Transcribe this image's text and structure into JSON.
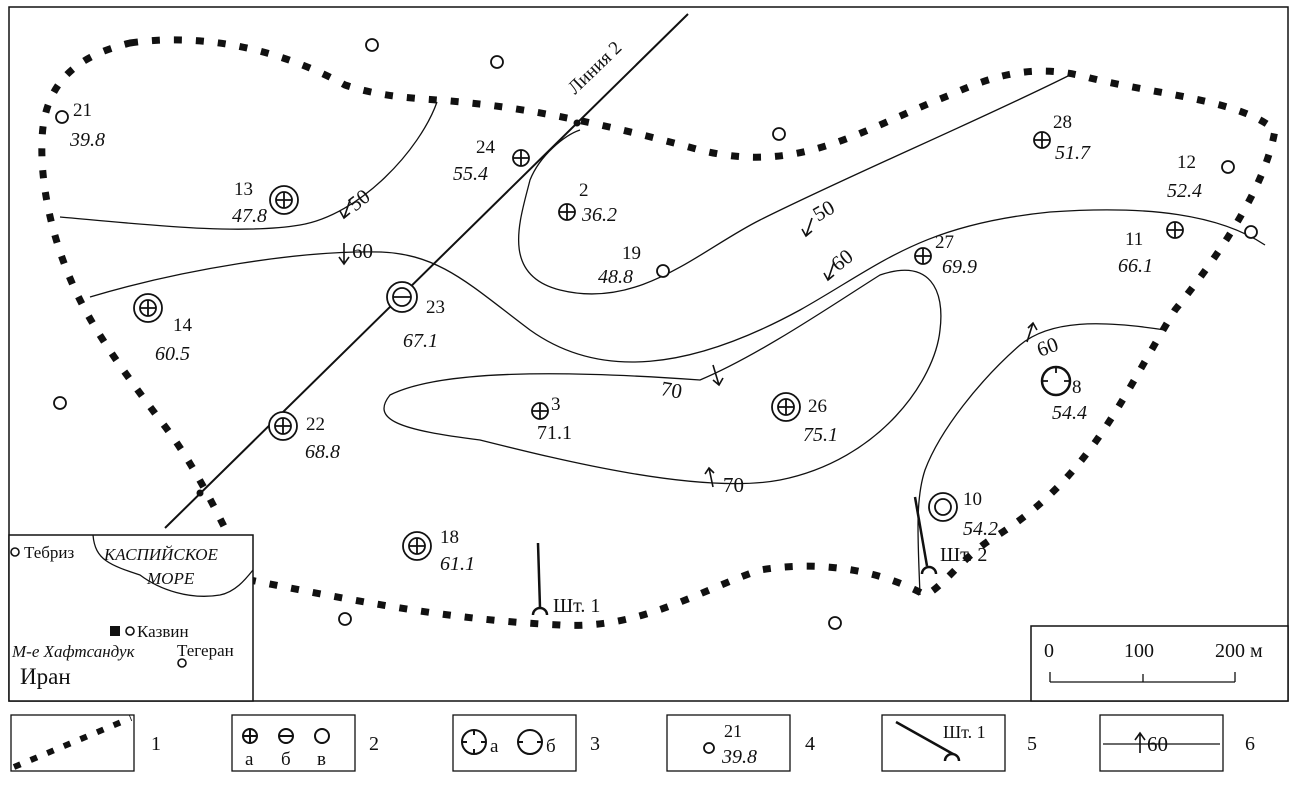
{
  "map": {
    "profile_line_label": "Линия 2",
    "wells": [
      {
        "id": "well-21",
        "number": "21",
        "value": "39.8",
        "symbol": "plain"
      },
      {
        "id": "well-24",
        "number": "24",
        "value": "55.4",
        "symbol": "cross-a"
      },
      {
        "id": "well-13",
        "number": "13",
        "value": "47.8",
        "symbol": "cross-a-ring"
      },
      {
        "id": "well-2",
        "number": "2",
        "value": "36.2",
        "symbol": "cross-a"
      },
      {
        "id": "well-19",
        "number": "19",
        "value": "48.8",
        "symbol": "plain"
      },
      {
        "id": "well-28",
        "number": "28",
        "value": "51.7",
        "symbol": "cross-a"
      },
      {
        "id": "well-12",
        "number": "12",
        "value": "52.4",
        "symbol": "plain"
      },
      {
        "id": "well-11",
        "number": "11",
        "value": "66.1",
        "symbol": "cross-a"
      },
      {
        "id": "well-27",
        "number": "27",
        "value": "69.9",
        "symbol": "cross-a"
      },
      {
        "id": "well-14",
        "number": "14",
        "value": "60.5",
        "symbol": "cross-a-ring"
      },
      {
        "id": "well-23",
        "number": "23",
        "value": "67.1",
        "symbol": "minus-b-ring"
      },
      {
        "id": "well-3",
        "number": "3",
        "value": "71.1",
        "symbol": "cross-a"
      },
      {
        "id": "well-26",
        "number": "26",
        "value": "75.1",
        "symbol": "cross-a-ring"
      },
      {
        "id": "well-8",
        "number": "8",
        "value": "54.4",
        "symbol": "ring-b"
      },
      {
        "id": "well-22",
        "number": "22",
        "value": "68.8",
        "symbol": "cross-a-ring"
      },
      {
        "id": "well-10",
        "number": "10",
        "value": "54.2",
        "symbol": "circle-v-ring"
      },
      {
        "id": "well-18",
        "number": "18",
        "value": "61.1",
        "symbol": "cross-a-ring"
      }
    ],
    "isolines": [
      "50",
      "60",
      "50",
      "60",
      "70",
      "70",
      "60"
    ],
    "shafts": [
      "Шт. 1",
      "Шт. 2"
    ],
    "scale": {
      "zero": "0",
      "mid": "100",
      "end": "200 м"
    }
  },
  "inset": {
    "sea_line1": "КАСПИЙСКОЕ",
    "sea_line2": "МОРЕ",
    "city_tabriz": "Тебриз",
    "city_qazvin": "Казвин",
    "city_tehran": "Тегеран",
    "deposit": "М-е Хафтсандук",
    "country": "Иран"
  },
  "legend": {
    "items": [
      {
        "n": "1"
      },
      {
        "n": "2",
        "labels": [
          "а",
          "б",
          "в"
        ]
      },
      {
        "n": "3",
        "labels": [
          "а",
          "б"
        ]
      },
      {
        "n": "4",
        "sample_number": "21",
        "sample_value": "39.8"
      },
      {
        "n": "5",
        "sample_label": "Шт. 1"
      },
      {
        "n": "6",
        "sample_value": "60"
      }
    ]
  }
}
